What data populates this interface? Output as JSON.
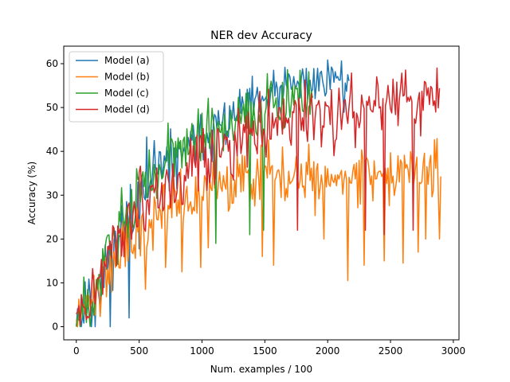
{
  "chart_data": {
    "type": "line",
    "title": "NER dev Accuracy",
    "xlabel": "Num. examples / 100",
    "ylabel": "Accuracy (%)",
    "xlim": [
      -100,
      3045
    ],
    "ylim": [
      -3,
      64
    ],
    "xticks": [
      0,
      500,
      1000,
      1500,
      2000,
      2500,
      3000
    ],
    "yticks": [
      0,
      10,
      20,
      30,
      40,
      50,
      60
    ],
    "grid": false,
    "legend_position": "top-left",
    "series": [
      {
        "name": "Model (a)",
        "color": "#1f77b4",
        "x_end": 2170,
        "step": 10,
        "anchors": [
          [
            0,
            3
          ],
          [
            100,
            6
          ],
          [
            200,
            12
          ],
          [
            300,
            19
          ],
          [
            400,
            25
          ],
          [
            500,
            30
          ],
          [
            600,
            34
          ],
          [
            800,
            39
          ],
          [
            1000,
            43
          ],
          [
            1200,
            47
          ],
          [
            1400,
            50
          ],
          [
            1600,
            53
          ],
          [
            1800,
            55
          ],
          [
            2000,
            57
          ],
          [
            2170,
            57
          ]
        ],
        "noise": [
          5,
          5,
          7,
          9,
          9,
          8,
          7,
          6,
          6,
          6,
          5,
          5,
          5,
          4,
          4
        ],
        "max": 61,
        "dips": [
          [
            40,
            0
          ],
          [
            150,
            0
          ],
          [
            270,
            0
          ],
          [
            420,
            2
          ]
        ],
        "seed": 11
      },
      {
        "name": "Model (b)",
        "color": "#ff7f0e",
        "x_end": 2900,
        "step": 10,
        "anchors": [
          [
            0,
            2
          ],
          [
            100,
            5
          ],
          [
            200,
            10
          ],
          [
            300,
            16
          ],
          [
            400,
            20
          ],
          [
            500,
            24
          ],
          [
            700,
            28
          ],
          [
            1000,
            31
          ],
          [
            1300,
            33
          ],
          [
            1600,
            34
          ],
          [
            2000,
            35
          ],
          [
            2400,
            35
          ],
          [
            2900,
            36
          ]
        ],
        "noise": [
          4,
          5,
          6,
          7,
          7,
          7,
          7,
          6,
          6,
          6,
          6,
          6,
          6
        ],
        "max": 43,
        "dips": [
          [
            550,
            8.5
          ],
          [
            710,
            13.5
          ],
          [
            840,
            12.5
          ],
          [
            990,
            13.5
          ],
          [
            1050,
            18
          ],
          [
            1480,
            16
          ],
          [
            1570,
            14
          ],
          [
            1970,
            20
          ],
          [
            2160,
            10.5
          ],
          [
            2290,
            14
          ],
          [
            2450,
            15
          ],
          [
            2600,
            14.5
          ],
          [
            2720,
            17
          ],
          [
            2780,
            20
          ],
          [
            2890,
            20
          ]
        ],
        "seed": 22
      },
      {
        "name": "Model (c)",
        "color": "#2ca02c",
        "x_end": 1880,
        "step": 10,
        "anchors": [
          [
            0,
            3
          ],
          [
            100,
            7
          ],
          [
            200,
            14
          ],
          [
            300,
            21
          ],
          [
            400,
            27
          ],
          [
            500,
            31
          ],
          [
            600,
            35
          ],
          [
            800,
            40
          ],
          [
            1000,
            43
          ],
          [
            1200,
            46
          ],
          [
            1400,
            49
          ],
          [
            1600,
            51
          ],
          [
            1880,
            53
          ]
        ],
        "noise": [
          5,
          6,
          8,
          9,
          9,
          8,
          8,
          7,
          7,
          6,
          6,
          6,
          6
        ],
        "max": 59,
        "dips": [
          [
            30,
            0
          ],
          [
            1110,
            19
          ],
          [
            1380,
            21
          ],
          [
            1490,
            22
          ]
        ],
        "seed": 33
      },
      {
        "name": "Model (d)",
        "color": "#d62728",
        "x_end": 2890,
        "step": 10,
        "anchors": [
          [
            0,
            3
          ],
          [
            100,
            6
          ],
          [
            200,
            12
          ],
          [
            300,
            18
          ],
          [
            400,
            23
          ],
          [
            500,
            27
          ],
          [
            700,
            32
          ],
          [
            1000,
            37
          ],
          [
            1300,
            42
          ],
          [
            1600,
            46
          ],
          [
            2000,
            49
          ],
          [
            2400,
            51
          ],
          [
            2890,
            52
          ]
        ],
        "noise": [
          4,
          5,
          6,
          7,
          8,
          8,
          8,
          8,
          8,
          7,
          7,
          7,
          7
        ],
        "max": 59,
        "dips": [
          [
            1760,
            22
          ],
          [
            2300,
            22
          ],
          [
            2450,
            21
          ],
          [
            2680,
            22
          ]
        ],
        "seed": 44
      }
    ]
  }
}
